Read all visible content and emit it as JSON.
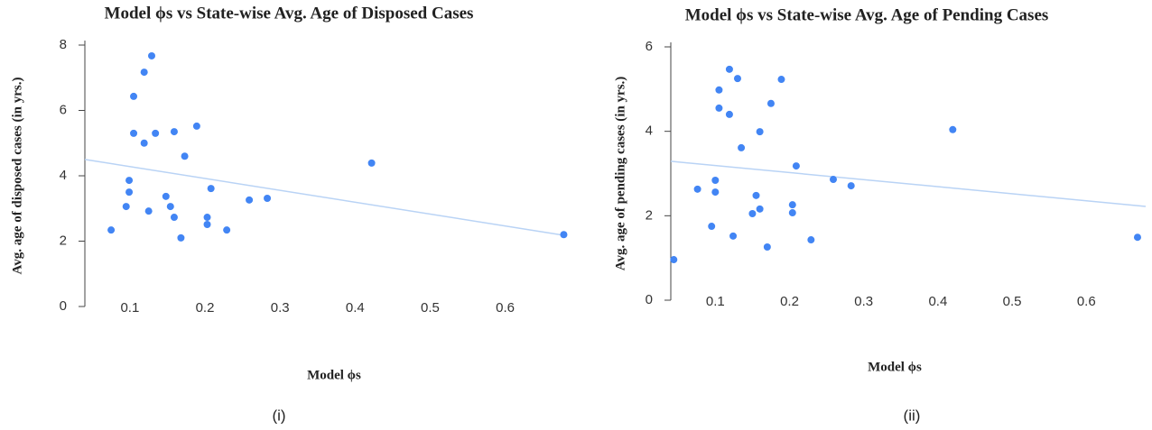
{
  "chart_data": [
    {
      "type": "scatter",
      "title": "Model ϕs vs State-wise Avg. Age of Disposed Cases",
      "x_label": "Model ϕs",
      "y_label": "Avg. age of disposed cases (in yrs.)",
      "caption": "(i)",
      "color": "#4285f4",
      "trend_color": "#b9d3f5",
      "xlim": [
        0.04,
        0.74
      ],
      "ylim": [
        0,
        8
      ],
      "xticks": [
        0.1,
        0.2,
        0.3,
        0.4,
        0.5,
        0.6
      ],
      "yticks": [
        0,
        2,
        4,
        6,
        8
      ],
      "x": [
        0.075,
        0.095,
        0.099,
        0.099,
        0.105,
        0.105,
        0.119,
        0.119,
        0.125,
        0.129,
        0.134,
        0.148,
        0.154,
        0.159,
        0.159,
        0.168,
        0.173,
        0.189,
        0.203,
        0.203,
        0.208,
        0.229,
        0.259,
        0.283,
        0.422,
        0.678
      ],
      "values": [
        2.34,
        3.06,
        3.86,
        3.5,
        6.43,
        5.3,
        7.17,
        5.0,
        2.92,
        7.67,
        5.3,
        3.37,
        3.06,
        5.35,
        2.73,
        2.1,
        4.6,
        5.52,
        2.73,
        2.51,
        3.61,
        2.34,
        3.26,
        3.31,
        4.39,
        2.2
      ],
      "trendline": {
        "x": [
          0.04,
          0.678
        ],
        "values": [
          4.5,
          2.18
        ]
      }
    },
    {
      "type": "scatter",
      "title": "Model ϕs vs State-wise Avg. Age of Pending Cases",
      "x_label": "Model ϕs",
      "y_label": "Avg. age of pending cases (in yrs.)",
      "caption": "(ii)",
      "color": "#4285f4",
      "trend_color": "#b9d3f5",
      "xlim": [
        0.04,
        0.68
      ],
      "ylim": [
        0,
        6
      ],
      "xticks": [
        0.1,
        0.2,
        0.3,
        0.4,
        0.5,
        0.6
      ],
      "yticks": [
        0,
        2,
        4,
        6
      ],
      "x": [
        0.044,
        0.076,
        0.095,
        0.1,
        0.1,
        0.105,
        0.105,
        0.119,
        0.119,
        0.124,
        0.13,
        0.135,
        0.15,
        0.155,
        0.16,
        0.16,
        0.17,
        0.175,
        0.189,
        0.204,
        0.204,
        0.209,
        0.229,
        0.259,
        0.283,
        0.42,
        0.669
      ],
      "values": [
        0.96,
        2.63,
        1.75,
        2.84,
        2.56,
        4.98,
        4.55,
        5.47,
        4.4,
        1.52,
        5.25,
        3.61,
        2.05,
        2.48,
        2.16,
        3.99,
        1.26,
        4.66,
        5.23,
        2.26,
        2.07,
        3.18,
        1.43,
        2.86,
        2.71,
        4.04,
        1.49
      ],
      "trendline": {
        "x": [
          0.04,
          0.68
        ],
        "values": [
          3.29,
          2.22
        ]
      }
    }
  ]
}
